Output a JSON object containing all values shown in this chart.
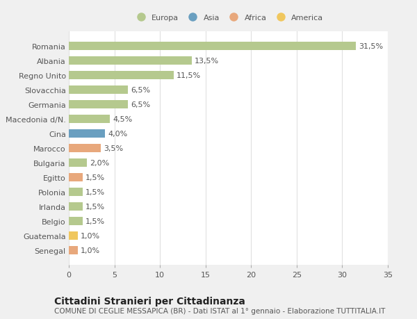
{
  "categories": [
    "Senegal",
    "Guatemala",
    "Belgio",
    "Irlanda",
    "Polonia",
    "Egitto",
    "Bulgaria",
    "Marocco",
    "Cina",
    "Macedonia d/N.",
    "Germania",
    "Slovacchia",
    "Regno Unito",
    "Albania",
    "Romania"
  ],
  "values": [
    1.0,
    1.0,
    1.5,
    1.5,
    1.5,
    1.5,
    2.0,
    3.5,
    4.0,
    4.5,
    6.5,
    6.5,
    11.5,
    13.5,
    31.5
  ],
  "colors": [
    "#e8a87c",
    "#f0c75e",
    "#b5c98e",
    "#b5c98e",
    "#b5c98e",
    "#e8a87c",
    "#b5c98e",
    "#e8a87c",
    "#6a9fc0",
    "#b5c98e",
    "#b5c98e",
    "#b5c98e",
    "#b5c98e",
    "#b5c98e",
    "#b5c98e"
  ],
  "labels": [
    "1,0%",
    "1,0%",
    "1,5%",
    "1,5%",
    "1,5%",
    "1,5%",
    "2,0%",
    "3,5%",
    "4,0%",
    "4,5%",
    "6,5%",
    "6,5%",
    "11,5%",
    "13,5%",
    "31,5%"
  ],
  "legend_names": [
    "Europa",
    "Asia",
    "Africa",
    "America"
  ],
  "legend_colors": [
    "#b5c98e",
    "#6a9fc0",
    "#e8a87c",
    "#f0c75e"
  ],
  "xlim": [
    0,
    35
  ],
  "xticks": [
    0,
    5,
    10,
    15,
    20,
    25,
    30,
    35
  ],
  "title": "Cittadini Stranieri per Cittadinanza",
  "subtitle": "COMUNE DI CEGLIE MESSAPICA (BR) - Dati ISTAT al 1° gennaio - Elaborazione TUTTITALIA.IT",
  "bg_color": "#f0f0f0",
  "plot_bg_color": "#ffffff",
  "grid_color": "#e0e0e0",
  "bar_height": 0.55,
  "label_fontsize": 8,
  "tick_fontsize": 8,
  "title_fontsize": 10,
  "subtitle_fontsize": 7.5,
  "text_color": "#555555",
  "title_color": "#222222"
}
